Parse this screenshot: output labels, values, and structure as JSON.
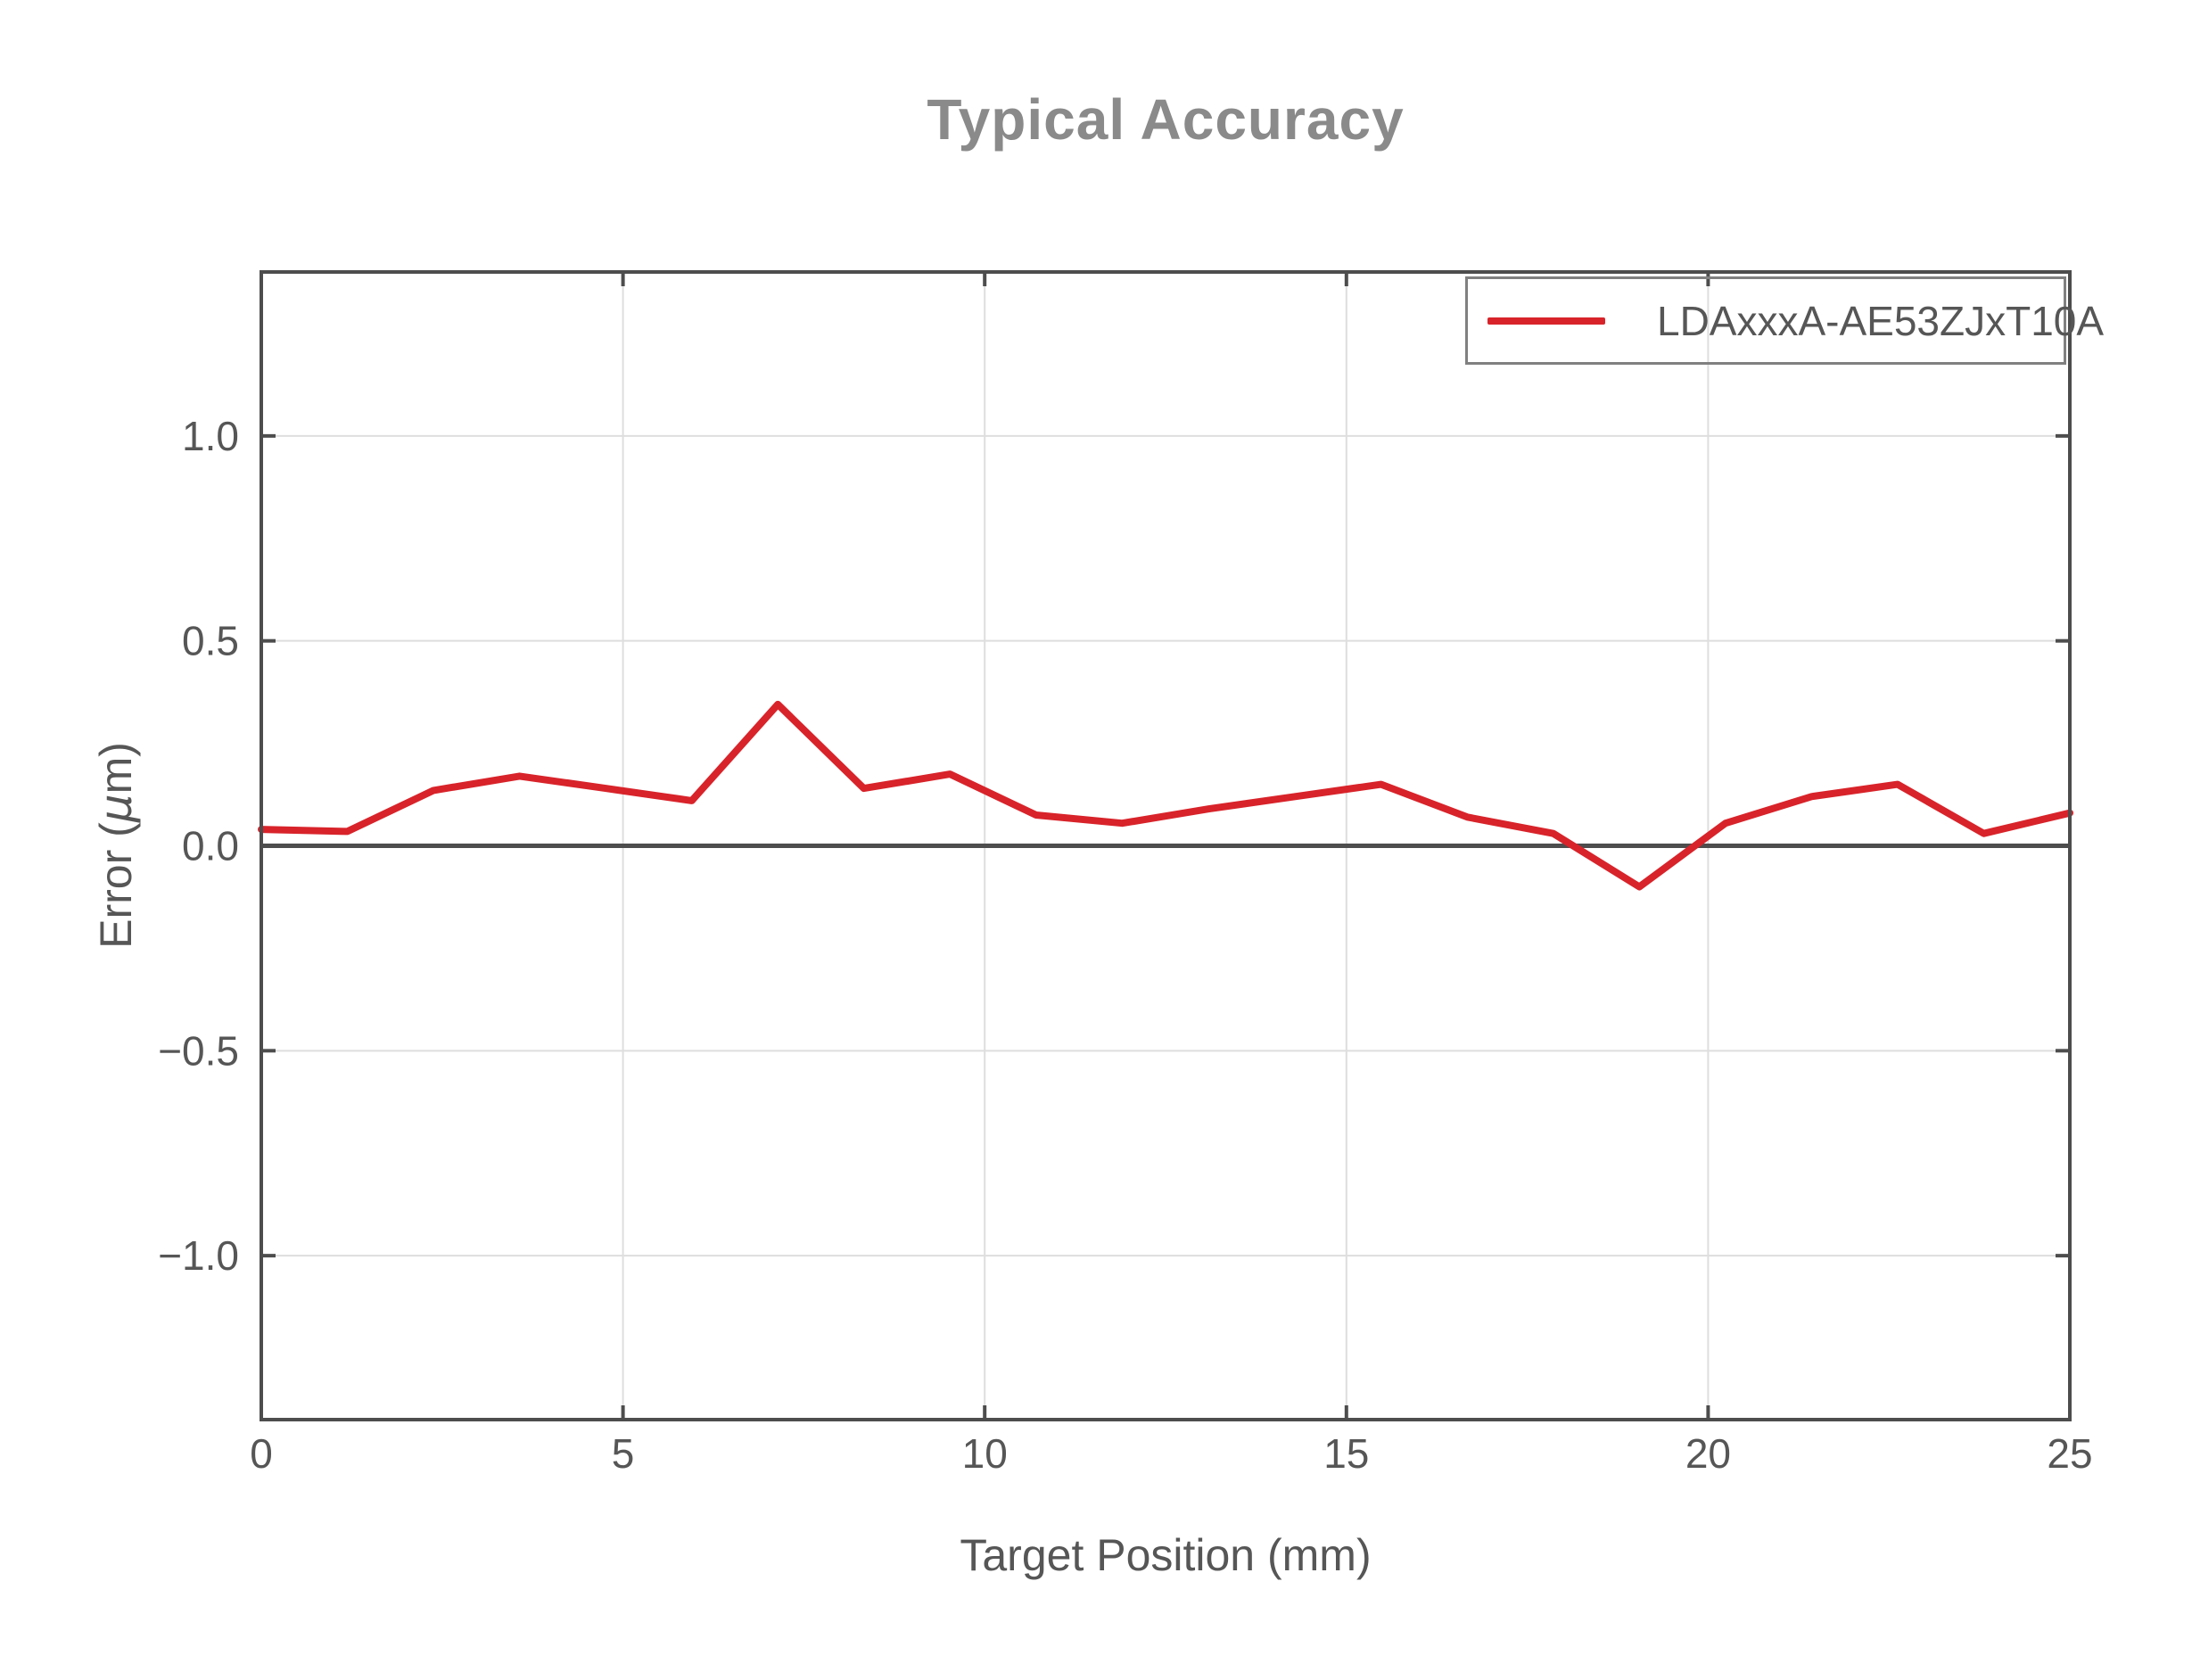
{
  "chart_data": {
    "type": "line",
    "title": "Typical Accuracy",
    "xlabel": "Target Position (mm)",
    "ylabel": "Error (μm)",
    "ylabel_parts": {
      "prefix": "Error (",
      "mu": "μ",
      "suffix": "m)"
    },
    "xlim": [
      0,
      25
    ],
    "ylim": [
      -1.4,
      1.4
    ],
    "xticks": [
      0,
      5,
      10,
      15,
      20,
      25
    ],
    "yticks": [
      -1.0,
      -0.5,
      0.0,
      0.5,
      1.0
    ],
    "xtick_labels": [
      "0",
      "5",
      "10",
      "15",
      "20",
      "25"
    ],
    "ytick_labels": [
      "−1.0",
      "−0.5",
      "0.0",
      "0.5",
      "1.0"
    ],
    "grid": true,
    "zero_line": true,
    "legend_position": "upper right",
    "series": [
      {
        "name": "LDAxxxA-AE53ZJxT10A",
        "color": "#d8232a",
        "x": [
          0,
          1.19,
          2.38,
          3.57,
          4.76,
          5.95,
          7.14,
          8.33,
          9.52,
          10.71,
          11.9,
          13.1,
          14.29,
          15.48,
          16.67,
          17.86,
          19.05,
          20.24,
          21.43,
          22.62,
          23.81,
          25
        ],
        "y": [
          0.04,
          0.035,
          0.135,
          0.17,
          0.14,
          0.11,
          0.345,
          0.14,
          0.175,
          0.075,
          0.055,
          0.09,
          0.12,
          0.15,
          0.07,
          0.03,
          -0.1,
          0.055,
          0.12,
          0.15,
          0.03,
          0.08
        ]
      }
    ],
    "colors": {
      "line": "#d8232a",
      "grid": "#dedede",
      "spine": "#4d4d4d",
      "zero_line": "#4d4d4d",
      "tick_label": "#565656",
      "axis_label": "#565656",
      "title": "#8a8a8a",
      "legend_border": "#808080",
      "legend_text": "#565656",
      "background": "#ffffff"
    }
  }
}
